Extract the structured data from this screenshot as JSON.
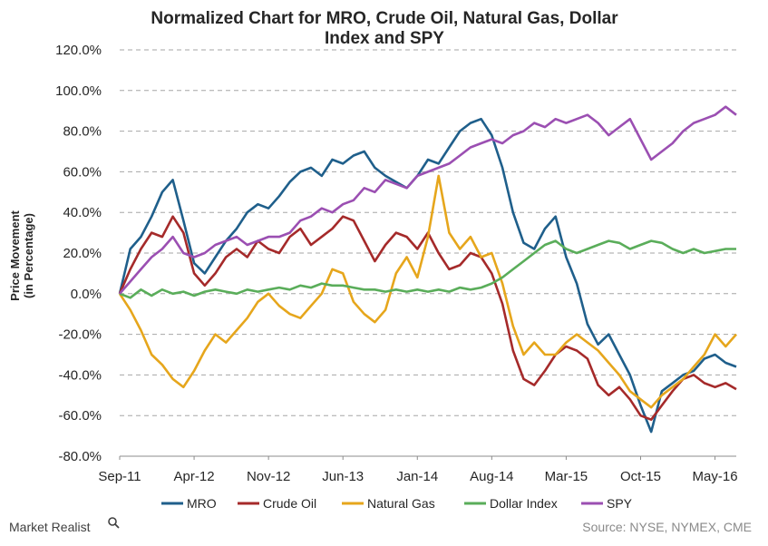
{
  "brand": {
    "name": "Market Realist",
    "icon": "magnifier-icon"
  },
  "source": "Source: NYSE, NYMEX, CME",
  "chart_data": {
    "type": "line",
    "title_lines": [
      "Normalized Chart for MRO, Crude Oil, Natural Gas, Dollar",
      "Index and SPY"
    ],
    "ylabel_lines": [
      "Price Movement",
      "(in Percentage)"
    ],
    "xlabel": "",
    "ylim": [
      -80,
      120
    ],
    "yticks": [
      -80,
      -60,
      -40,
      -20,
      0,
      20,
      40,
      60,
      80,
      100,
      120
    ],
    "ytick_labels": [
      "-80.0%",
      "-60.0%",
      "-40.0%",
      "-20.0%",
      "0.0%",
      "20.0%",
      "40.0%",
      "60.0%",
      "80.0%",
      "100.0%",
      "120.0%"
    ],
    "xlim": [
      0,
      58
    ],
    "xticks": [
      0,
      7,
      14,
      21,
      28,
      35,
      42,
      49,
      56
    ],
    "xtick_labels": [
      "Sep-11",
      "Apr-12",
      "Nov-12",
      "Jun-13",
      "Jan-14",
      "Aug-14",
      "Mar-15",
      "Oct-15",
      "May-16"
    ],
    "grid": "horizontal dashed",
    "legend_position": "bottom",
    "x": [
      0,
      1,
      2,
      3,
      4,
      5,
      6,
      7,
      8,
      9,
      10,
      11,
      12,
      13,
      14,
      15,
      16,
      17,
      18,
      19,
      20,
      21,
      22,
      23,
      24,
      25,
      26,
      27,
      28,
      29,
      30,
      31,
      32,
      33,
      34,
      35,
      36,
      37,
      38,
      39,
      40,
      41,
      42,
      43,
      44,
      45,
      46,
      47,
      48,
      49,
      50,
      51,
      52,
      53,
      54,
      55,
      56,
      57,
      58
    ],
    "series": [
      {
        "name": "MRO",
        "color": "#1f5f8b",
        "values": [
          0,
          22,
          28,
          38,
          50,
          56,
          36,
          15,
          10,
          18,
          26,
          32,
          40,
          44,
          42,
          48,
          55,
          60,
          62,
          58,
          66,
          64,
          68,
          70,
          62,
          58,
          55,
          52,
          58,
          66,
          64,
          72,
          80,
          84,
          86,
          78,
          62,
          40,
          25,
          22,
          32,
          38,
          18,
          5,
          -15,
          -25,
          -20,
          -30,
          -40,
          -55,
          -68,
          -48,
          -44,
          -40,
          -38,
          -32,
          -30,
          -34,
          -36
        ]
      },
      {
        "name": "Crude Oil",
        "color": "#a52a2a",
        "values": [
          0,
          12,
          22,
          30,
          28,
          38,
          30,
          10,
          4,
          10,
          18,
          22,
          18,
          26,
          22,
          20,
          28,
          32,
          24,
          28,
          32,
          38,
          36,
          26,
          16,
          24,
          30,
          28,
          22,
          30,
          20,
          12,
          14,
          20,
          18,
          10,
          -5,
          -28,
          -42,
          -45,
          -38,
          -30,
          -26,
          -28,
          -32,
          -45,
          -50,
          -46,
          -52,
          -60,
          -62,
          -55,
          -48,
          -42,
          -40,
          -44,
          -46,
          -44,
          -47
        ]
      },
      {
        "name": "Natural Gas",
        "color": "#e6a61c",
        "values": [
          0,
          -8,
          -18,
          -30,
          -35,
          -42,
          -46,
          -38,
          -28,
          -20,
          -24,
          -18,
          -12,
          -4,
          0,
          -6,
          -10,
          -12,
          -6,
          0,
          12,
          10,
          -4,
          -10,
          -14,
          -8,
          10,
          18,
          8,
          28,
          58,
          30,
          22,
          28,
          18,
          20,
          5,
          -16,
          -30,
          -24,
          -30,
          -30,
          -24,
          -20,
          -24,
          -28,
          -34,
          -40,
          -48,
          -52,
          -56,
          -50,
          -46,
          -42,
          -36,
          -30,
          -20,
          -26,
          -20
        ]
      },
      {
        "name": "Dollar Index",
        "color": "#5aad5a",
        "values": [
          0,
          -2,
          2,
          -1,
          2,
          0,
          1,
          -1,
          1,
          2,
          1,
          0,
          2,
          1,
          2,
          3,
          2,
          4,
          3,
          5,
          4,
          4,
          3,
          2,
          2,
          1,
          2,
          1,
          2,
          1,
          2,
          1,
          3,
          2,
          3,
          5,
          8,
          12,
          16,
          20,
          24,
          26,
          22,
          20,
          22,
          24,
          26,
          25,
          22,
          24,
          26,
          25,
          22,
          20,
          22,
          20,
          21,
          22,
          22
        ]
      },
      {
        "name": "SPY",
        "color": "#9b4fb2",
        "values": [
          0,
          6,
          12,
          18,
          22,
          28,
          20,
          18,
          20,
          24,
          26,
          28,
          24,
          26,
          28,
          28,
          30,
          36,
          38,
          42,
          40,
          44,
          46,
          52,
          50,
          56,
          54,
          52,
          58,
          60,
          62,
          64,
          68,
          72,
          74,
          76,
          74,
          78,
          80,
          84,
          82,
          86,
          84,
          86,
          88,
          84,
          78,
          82,
          86,
          76,
          66,
          70,
          74,
          80,
          84,
          86,
          88,
          92,
          88
        ]
      }
    ]
  }
}
